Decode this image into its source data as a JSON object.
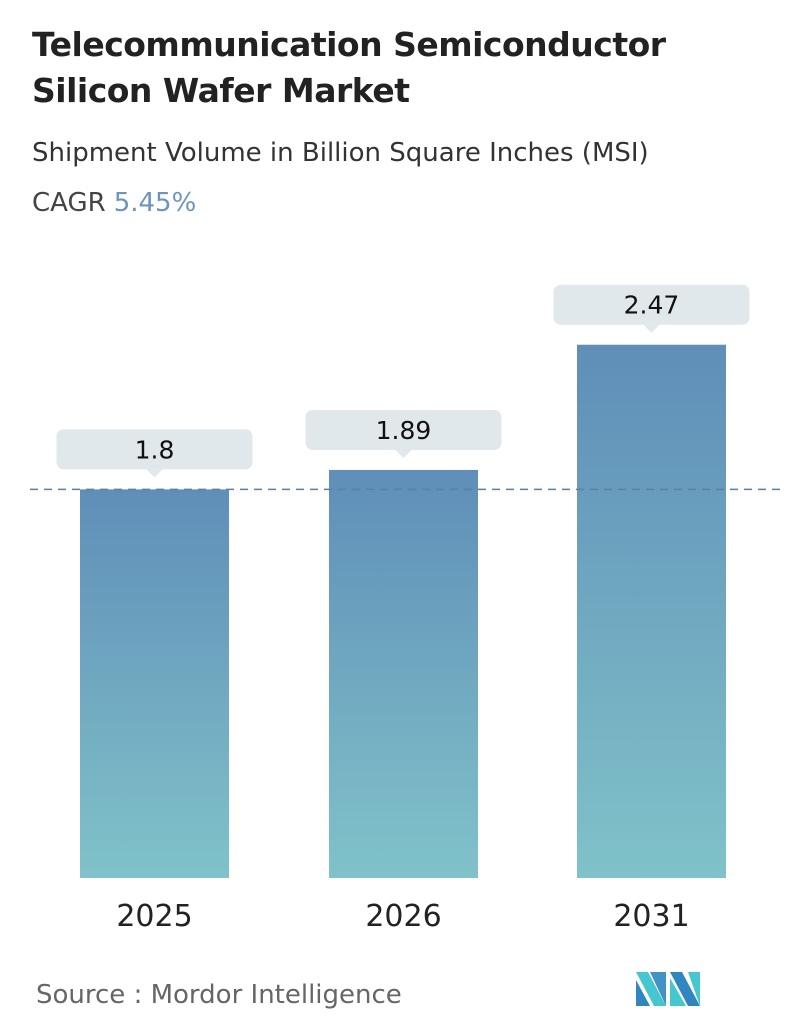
{
  "title": "Telecommunication Semiconductor Silicon Wafer Market",
  "subtitle": "Shipment Volume in Billion Square Inches (MSI)",
  "cagr_label": "CAGR",
  "cagr_value": "5.45%",
  "source": "Source :  Mordor Intelligence",
  "logo_text": "MI",
  "colors": {
    "bar_top": "#5f8eb8",
    "bar_bottom": "#80c2c9",
    "label_bg": "#e1e8ec",
    "dashed_line": "#5a80a8",
    "cagr": "#6b95be"
  },
  "chart_data": {
    "type": "bar",
    "categories": [
      "2025",
      "2026",
      "2031"
    ],
    "values": [
      1.8,
      1.89,
      2.47
    ],
    "value_labels": [
      "1.8",
      "1.89",
      "2.47"
    ],
    "reference_line": {
      "value": 1.8,
      "style": "dashed"
    },
    "grid": false,
    "legend": "none"
  }
}
